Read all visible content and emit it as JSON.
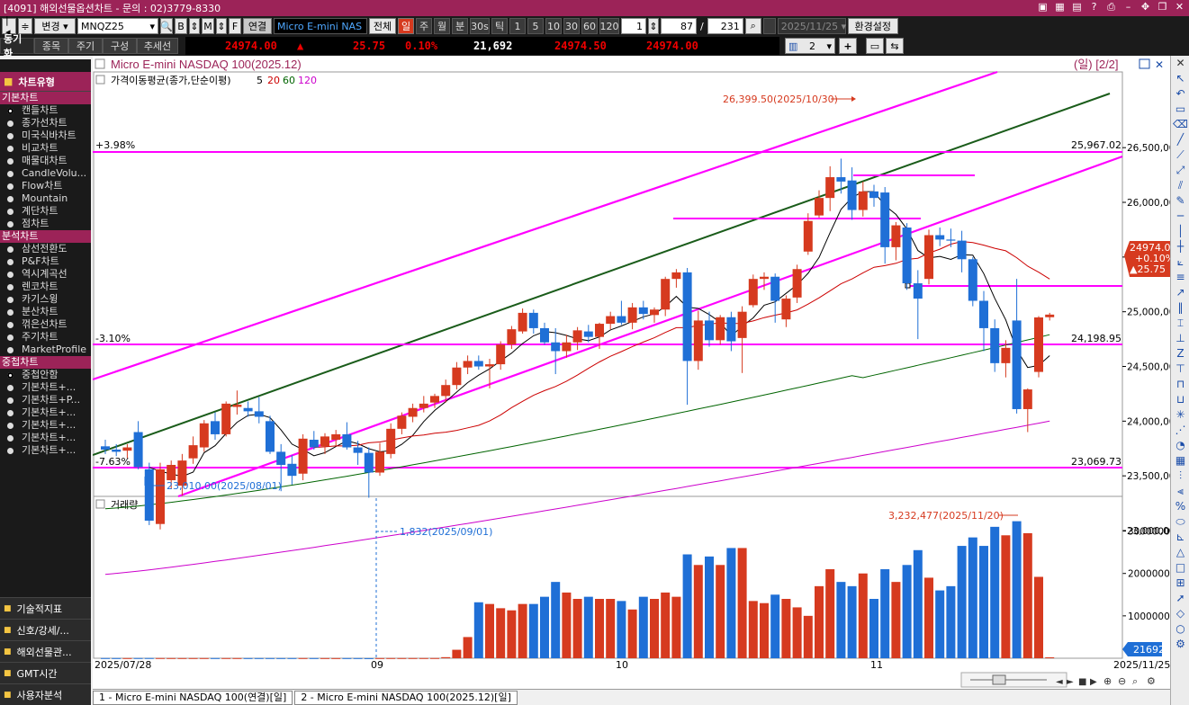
{
  "window": {
    "title": "[4091] 해외선물옵션차트 - 문의 : 02)3779-8330"
  },
  "toolbar": {
    "change_label": "변경",
    "symbol": "MNQZ25",
    "b_label": "B",
    "m_label": "M",
    "f_label": "F",
    "link_label": "연결",
    "product": "Micro E-mini NAS",
    "all_label": "전체",
    "periods": [
      "일",
      "주",
      "월",
      "분",
      "30s",
      "틱"
    ],
    "tick_nums": [
      "1",
      "5",
      "10",
      "30",
      "60",
      "120"
    ],
    "count_input": "1",
    "view_count": "87",
    "total_count": "231",
    "date": "2025/11/25",
    "settings_label": "환경설정"
  },
  "toolbar2": {
    "sync_label": "동기화",
    "tabs": [
      "종목",
      "주기",
      "구성",
      "추세선"
    ],
    "price": "24974.00",
    "change_arrow": "▲",
    "change": "25.75",
    "change_pct": "0.10%",
    "volume": "21,692",
    "bid": "24974.50",
    "ask": "24974.00",
    "layout_count": "2"
  },
  "sidebar": {
    "title": "차트유형",
    "sections": [
      {
        "name": "기본차트",
        "items": [
          "캔들차트",
          "종가선차트",
          "미국식바차트",
          "비교차트",
          "매물대차트",
          "CandleVolu...",
          "Flow차트",
          "Mountain",
          "계단차트",
          "점차트"
        ]
      },
      {
        "name": "분석차트",
        "items": [
          "삼선전환도",
          "P&F차트",
          "역시계곡선",
          "렌코차트",
          "카기스윙",
          "분산차트",
          "꺾은선차트",
          "주기차트",
          "MarketProfile"
        ]
      },
      {
        "name": "중첩차트",
        "items": [
          "중첩안함",
          "기본차트+...",
          "기본차트+P...",
          "기본차트+...",
          "기본차트+...",
          "기본차트+...",
          "기본차트+..."
        ]
      }
    ],
    "bottom": [
      "기술적지표",
      "신호/강세/...",
      "해외선물관...",
      "GMT시간",
      "사용자분석"
    ]
  },
  "chart": {
    "title": "Micro E-mini NASDAQ 100(2025.12)",
    "period_badge": "(일) [2/2]",
    "ma_label": "가격이동평균(종가,단순이평)",
    "ma_periods": [
      "5",
      "20",
      "60",
      "120"
    ],
    "volume_label": "거래량",
    "annotations": {
      "high": "26,399.50(2025/10/30)",
      "low": "23,010.00(2025/08/01)",
      "vol_high": "3,232,477(2025/11/20)",
      "vol_low": "1,832(2025/09/01)",
      "pct_top": "+3.98%",
      "pct_bottom1": "-3.10%",
      "pct_bottom2": "-7.63%",
      "level_top": "25,967.02",
      "level_mid": "24,198.95",
      "level_bot": "23,069.73",
      "last_price": "24974.00",
      "last_change": "+0.10%",
      "last_diff": "▲25.75",
      "last_volume": "21692"
    },
    "x_labels": [
      "2025/07/28",
      "09",
      "10",
      "11",
      "2025/11/25"
    ],
    "colors": {
      "up": "#d63a1f",
      "down": "#1f6fd6",
      "ma5": "#000000",
      "ma20": "#cc0000",
      "ma60": "#006400",
      "ma120": "#cc00cc",
      "channel": "#ff00ff",
      "trend": "#1a5c1a"
    }
  },
  "chart_data": {
    "type": "candlestick",
    "ylim": [
      22900,
      26600
    ],
    "yticks": [
      23000,
      23500,
      24000,
      24500,
      25000,
      25500,
      26000,
      26500
    ],
    "vol_ylim": [
      0,
      3500000
    ],
    "vol_ticks": [
      1000000,
      2000000,
      3000000
    ],
    "days": [
      {
        "o": 23770,
        "h": 23830,
        "l": 23700,
        "c": 23740,
        "v": 4500
      },
      {
        "o": 23740,
        "h": 23790,
        "l": 23680,
        "c": 23720,
        "v": 4000
      },
      {
        "o": 23730,
        "h": 23790,
        "l": 23660,
        "c": 23760,
        "v": 4200
      },
      {
        "o": 23900,
        "h": 24000,
        "l": 23560,
        "c": 23580,
        "v": 4800
      },
      {
        "o": 23560,
        "h": 23620,
        "l": 23050,
        "c": 23090,
        "v": 5200
      },
      {
        "o": 23060,
        "h": 23620,
        "l": 23010,
        "c": 23560,
        "v": 4800
      },
      {
        "o": 23460,
        "h": 23640,
        "l": 23380,
        "c": 23600,
        "v": 4300
      },
      {
        "o": 23410,
        "h": 23700,
        "l": 23320,
        "c": 23640,
        "v": 4000
      },
      {
        "o": 23660,
        "h": 23860,
        "l": 23610,
        "c": 23780,
        "v": 4000
      },
      {
        "o": 23760,
        "h": 24010,
        "l": 23720,
        "c": 23980,
        "v": 4200
      },
      {
        "o": 24000,
        "h": 24080,
        "l": 23830,
        "c": 23880,
        "v": 4200
      },
      {
        "o": 23880,
        "h": 24180,
        "l": 23860,
        "c": 24160,
        "v": 4400
      },
      {
        "o": 24130,
        "h": 24280,
        "l": 24060,
        "c": 24150,
        "v": 4100
      },
      {
        "o": 24120,
        "h": 24180,
        "l": 24040,
        "c": 24090,
        "v": 3800
      },
      {
        "o": 24090,
        "h": 24220,
        "l": 23980,
        "c": 24040,
        "v": 3900
      },
      {
        "o": 24000,
        "h": 24050,
        "l": 23700,
        "c": 23720,
        "v": 4000
      },
      {
        "o": 23720,
        "h": 23790,
        "l": 23360,
        "c": 23600,
        "v": 3700
      },
      {
        "o": 23610,
        "h": 23690,
        "l": 23420,
        "c": 23500,
        "v": 3900
      },
      {
        "o": 23520,
        "h": 23880,
        "l": 23460,
        "c": 23840,
        "v": 4100
      },
      {
        "o": 23830,
        "h": 23910,
        "l": 23740,
        "c": 23760,
        "v": 3700
      },
      {
        "o": 23770,
        "h": 23890,
        "l": 23700,
        "c": 23860,
        "v": 3600
      },
      {
        "o": 23830,
        "h": 23920,
        "l": 23770,
        "c": 23880,
        "v": 3400
      },
      {
        "o": 23880,
        "h": 23990,
        "l": 23740,
        "c": 23760,
        "v": 3600
      },
      {
        "o": 23760,
        "h": 23820,
        "l": 23600,
        "c": 23710,
        "v": 3600
      },
      {
        "o": 23710,
        "h": 23760,
        "l": 23300,
        "c": 23530,
        "v": 1832
      },
      {
        "o": 23530,
        "h": 23800,
        "l": 23500,
        "c": 23720,
        "v": 3700
      },
      {
        "o": 23700,
        "h": 23980,
        "l": 23660,
        "c": 23930,
        "v": 4400
      },
      {
        "o": 23930,
        "h": 24080,
        "l": 23880,
        "c": 24050,
        "v": 4300
      },
      {
        "o": 24040,
        "h": 24160,
        "l": 23990,
        "c": 24120,
        "v": 4300
      },
      {
        "o": 24120,
        "h": 24230,
        "l": 24080,
        "c": 24160,
        "v": 4400
      },
      {
        "o": 24170,
        "h": 24250,
        "l": 24120,
        "c": 24230,
        "v": 4800
      },
      {
        "o": 24230,
        "h": 24380,
        "l": 24170,
        "c": 24330,
        "v": 25000
      },
      {
        "o": 24330,
        "h": 24540,
        "l": 24290,
        "c": 24490,
        "v": 200000
      },
      {
        "o": 24490,
        "h": 24600,
        "l": 24430,
        "c": 24550,
        "v": 500000
      },
      {
        "o": 24550,
        "h": 24600,
        "l": 24470,
        "c": 24500,
        "v": 1320000
      },
      {
        "o": 24500,
        "h": 24570,
        "l": 24300,
        "c": 24520,
        "v": 1280000
      },
      {
        "o": 24520,
        "h": 24730,
        "l": 24470,
        "c": 24700,
        "v": 1180000
      },
      {
        "o": 24700,
        "h": 24870,
        "l": 24660,
        "c": 24840,
        "v": 1130000
      },
      {
        "o": 24820,
        "h": 25030,
        "l": 24800,
        "c": 24990,
        "v": 1280000
      },
      {
        "o": 24990,
        "h": 25020,
        "l": 24800,
        "c": 24850,
        "v": 1280000
      },
      {
        "o": 24850,
        "h": 24900,
        "l": 24700,
        "c": 24720,
        "v": 1450000
      },
      {
        "o": 24720,
        "h": 24850,
        "l": 24430,
        "c": 24640,
        "v": 1800000
      },
      {
        "o": 24640,
        "h": 24790,
        "l": 24580,
        "c": 24720,
        "v": 1550000
      },
      {
        "o": 24720,
        "h": 24860,
        "l": 24650,
        "c": 24830,
        "v": 1400000
      },
      {
        "o": 24820,
        "h": 24880,
        "l": 24720,
        "c": 24770,
        "v": 1450000
      },
      {
        "o": 24770,
        "h": 24900,
        "l": 24660,
        "c": 24890,
        "v": 1400000
      },
      {
        "o": 24890,
        "h": 25000,
        "l": 24840,
        "c": 24960,
        "v": 1400000
      },
      {
        "o": 24960,
        "h": 25100,
        "l": 24880,
        "c": 24900,
        "v": 1350000
      },
      {
        "o": 24900,
        "h": 25080,
        "l": 24840,
        "c": 25040,
        "v": 1150000
      },
      {
        "o": 25040,
        "h": 25100,
        "l": 24930,
        "c": 24980,
        "v": 1450000
      },
      {
        "o": 24970,
        "h": 25040,
        "l": 24900,
        "c": 25020,
        "v": 1400000
      },
      {
        "o": 25020,
        "h": 25320,
        "l": 24960,
        "c": 25300,
        "v": 1550000
      },
      {
        "o": 25300,
        "h": 25390,
        "l": 25220,
        "c": 25360,
        "v": 1450000
      },
      {
        "o": 25360,
        "h": 25400,
        "l": 24150,
        "c": 24550,
        "v": 2450000
      },
      {
        "o": 24550,
        "h": 25010,
        "l": 24470,
        "c": 24920,
        "v": 2200000
      },
      {
        "o": 24920,
        "h": 25000,
        "l": 24680,
        "c": 24740,
        "v": 2400000
      },
      {
        "o": 24740,
        "h": 24970,
        "l": 24700,
        "c": 24950,
        "v": 2200000
      },
      {
        "o": 24950,
        "h": 25000,
        "l": 24640,
        "c": 24730,
        "v": 2600000
      },
      {
        "o": 24760,
        "h": 25050,
        "l": 24440,
        "c": 25000,
        "v": 2600000
      },
      {
        "o": 25060,
        "h": 25340,
        "l": 25040,
        "c": 25300,
        "v": 1350000
      },
      {
        "o": 25300,
        "h": 25360,
        "l": 25200,
        "c": 25320,
        "v": 1300000
      },
      {
        "o": 25320,
        "h": 25350,
        "l": 24900,
        "c": 25100,
        "v": 1500000
      },
      {
        "o": 24930,
        "h": 25150,
        "l": 24860,
        "c": 25120,
        "v": 1400000
      },
      {
        "o": 25130,
        "h": 25430,
        "l": 25080,
        "c": 25390,
        "v": 1200000
      },
      {
        "o": 25550,
        "h": 25900,
        "l": 25520,
        "c": 25830,
        "v": 1000000
      },
      {
        "o": 25880,
        "h": 26110,
        "l": 25860,
        "c": 26040,
        "v": 1700000
      },
      {
        "o": 26040,
        "h": 26330,
        "l": 25920,
        "c": 26230,
        "v": 2100000
      },
      {
        "o": 26230,
        "h": 26399.5,
        "l": 26080,
        "c": 26190,
        "v": 1800000
      },
      {
        "o": 26200,
        "h": 26320,
        "l": 25840,
        "c": 25930,
        "v": 1700000
      },
      {
        "o": 25930,
        "h": 26190,
        "l": 25870,
        "c": 26100,
        "v": 2000000
      },
      {
        "o": 26100,
        "h": 26160,
        "l": 25960,
        "c": 26040,
        "v": 1400000
      },
      {
        "o": 26090,
        "h": 26140,
        "l": 25440,
        "c": 25590,
        "v": 2100000
      },
      {
        "o": 25590,
        "h": 25820,
        "l": 25470,
        "c": 25790,
        "v": 1800000
      },
      {
        "o": 25770,
        "h": 25810,
        "l": 25200,
        "c": 25260,
        "v": 2200000
      },
      {
        "o": 25260,
        "h": 25380,
        "l": 24750,
        "c": 25120,
        "v": 2550000
      },
      {
        "o": 25300,
        "h": 25750,
        "l": 25250,
        "c": 25700,
        "v": 1900000
      },
      {
        "o": 25700,
        "h": 25770,
        "l": 25600,
        "c": 25660,
        "v": 1600000
      },
      {
        "o": 25660,
        "h": 25760,
        "l": 25590,
        "c": 25650,
        "v": 1700000
      },
      {
        "o": 25650,
        "h": 25740,
        "l": 25360,
        "c": 25480,
        "v": 2650000
      },
      {
        "o": 25480,
        "h": 25500,
        "l": 25050,
        "c": 25100,
        "v": 2850000
      },
      {
        "o": 25100,
        "h": 25190,
        "l": 24640,
        "c": 24850,
        "v": 2650000
      },
      {
        "o": 24850,
        "h": 24930,
        "l": 24450,
        "c": 24530,
        "v": 3100000
      },
      {
        "o": 24530,
        "h": 24740,
        "l": 24400,
        "c": 24670,
        "v": 2900000
      },
      {
        "o": 24920,
        "h": 25300,
        "l": 24070,
        "c": 24110,
        "v": 3232477
      },
      {
        "o": 24110,
        "h": 24300,
        "l": 23900,
        "c": 24290,
        "v": 2950000
      },
      {
        "o": 24450,
        "h": 24960,
        "l": 24400,
        "c": 24948,
        "v": 1920000
      },
      {
        "o": 24950,
        "h": 24990,
        "l": 24920,
        "c": 24974,
        "v": 21692
      }
    ]
  }
}
